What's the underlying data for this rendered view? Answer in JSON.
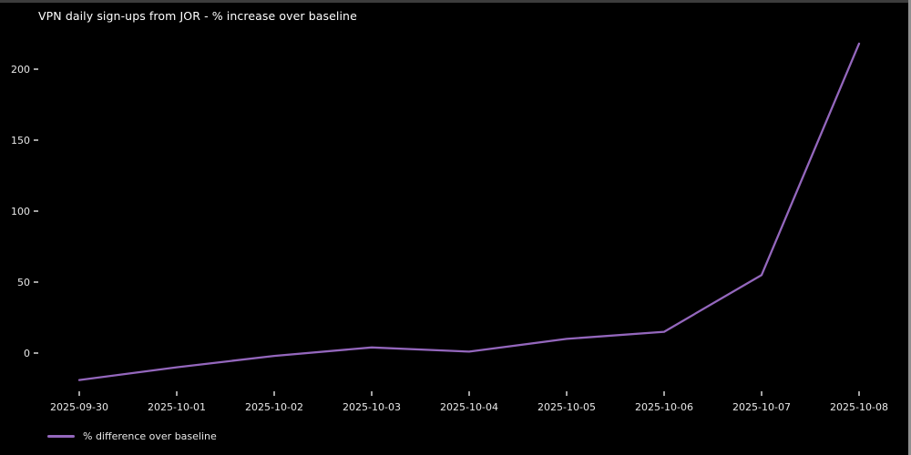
{
  "window": {
    "background": "#000000",
    "top_edge_color": "#3c3c3c",
    "right_edge_color": "#8f8f8f"
  },
  "chart_data": {
    "type": "line",
    "title": "VPN daily sign-ups from JOR - % increase over baseline",
    "categories": [
      "2025-09-30",
      "2025-10-01",
      "2025-10-02",
      "2025-10-03",
      "2025-10-04",
      "2025-10-05",
      "2025-10-06",
      "2025-10-07",
      "2025-10-08"
    ],
    "series": [
      {
        "name": "% difference over baseline",
        "values": [
          -19,
          -10,
          -2,
          4,
          1,
          10,
          15,
          55,
          218
        ],
        "color": "#9467bd"
      }
    ],
    "xlabel": "",
    "ylabel": "",
    "yticks": [
      0,
      50,
      100,
      150,
      200
    ],
    "ylim": [
      -30,
      232
    ],
    "grid": false,
    "background": "#000000",
    "text_color": "#e8e8e8",
    "legend_position": "lower-left-below-axis"
  },
  "legend": {
    "label": "% difference over baseline",
    "swatch_color": "#9467bd"
  }
}
